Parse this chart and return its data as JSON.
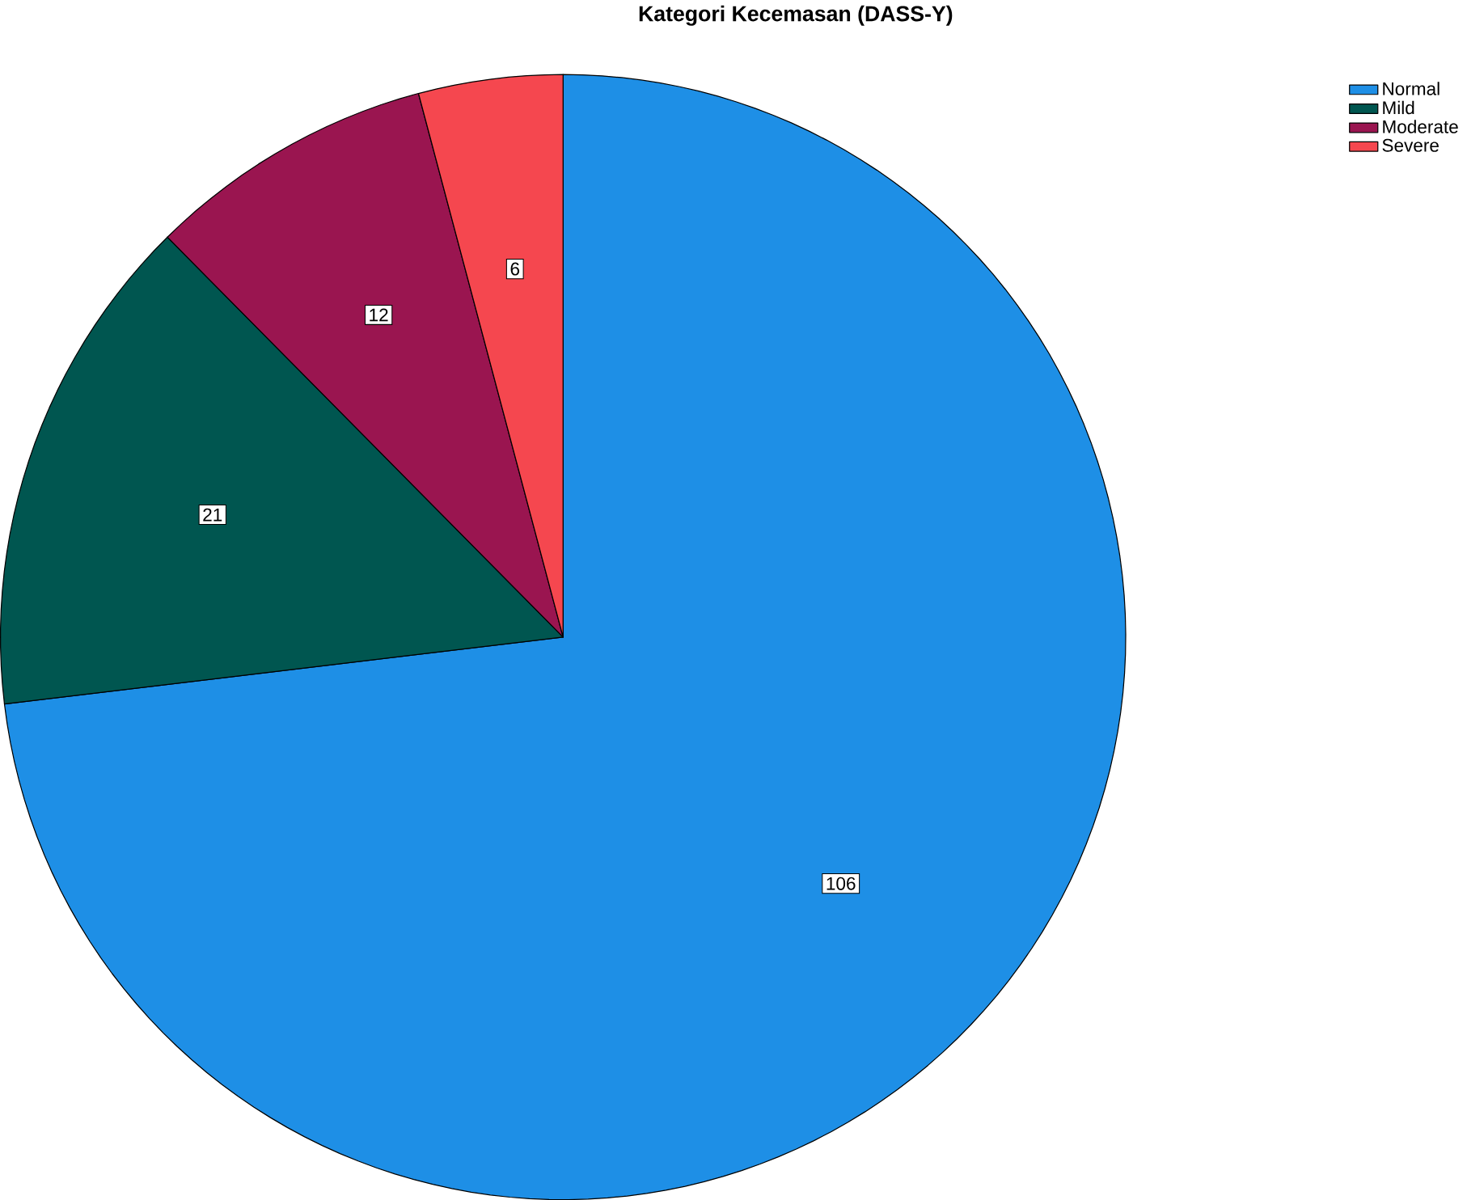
{
  "chart_data": {
    "type": "pie",
    "title": "Kategori Kecemasan (DASS-Y)",
    "categories": [
      "Normal",
      "Mild",
      "Moderate",
      "Severe"
    ],
    "values": [
      106,
      21,
      12,
      6
    ],
    "colors": [
      "#1e8fe6",
      "#005650",
      "#9a1550",
      "#f5474f"
    ],
    "data_labels": true,
    "legend": "top right"
  }
}
